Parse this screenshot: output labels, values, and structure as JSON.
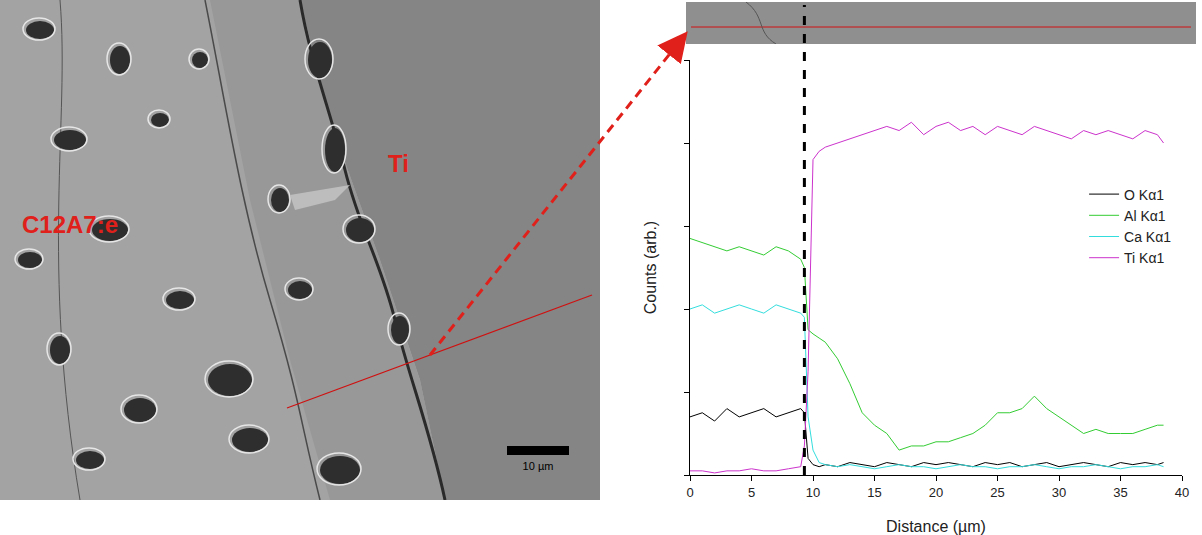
{
  "image": {
    "labels": [
      {
        "text": "C12A7:e",
        "color": "#e0201a"
      },
      {
        "text": "Ti",
        "color": "#e0201a"
      }
    ],
    "scale_bar": "10 µm"
  },
  "chart_data": {
    "type": "line",
    "x_label": "Distance (µm)",
    "y_label": "Counts (arb.)",
    "x": [
      0,
      1,
      2,
      3,
      4,
      5,
      6,
      7,
      8,
      9,
      9.3,
      9.6,
      10,
      10.5,
      11,
      12,
      13,
      14,
      15,
      16,
      17,
      18,
      19,
      20,
      21,
      22,
      23,
      24,
      25,
      26,
      27,
      28,
      29,
      30,
      31,
      32,
      33,
      34,
      35,
      36,
      37,
      38,
      38.5
    ],
    "series": [
      {
        "name": "O Kα1",
        "color": "#000000",
        "values": [
          14,
          15,
          13,
          16,
          14,
          15,
          16,
          14,
          15,
          16,
          15,
          4,
          2.5,
          2,
          2.5,
          2,
          3,
          2.5,
          2,
          3,
          2.5,
          2,
          3,
          2.5,
          3,
          2.5,
          2,
          3,
          2.5,
          3,
          2,
          2.5,
          3,
          2,
          2.5,
          3,
          2.5,
          2,
          3,
          2.5,
          3,
          2.5,
          3
        ]
      },
      {
        "name": "Al Kα1",
        "color": "#33cc33",
        "values": [
          57,
          56,
          55,
          54,
          55,
          54,
          53,
          55,
          54,
          52,
          50,
          35,
          34,
          33,
          32,
          28,
          22,
          15,
          12,
          10,
          6,
          7,
          7,
          8,
          8,
          9,
          10,
          12,
          15,
          15,
          16,
          19,
          16,
          14,
          12,
          10,
          11,
          10,
          10,
          10,
          11,
          12,
          12
        ]
      },
      {
        "name": "Ca Kα1",
        "color": "#33dddd",
        "values": [
          40,
          41,
          39,
          40,
          41,
          40,
          39,
          41,
          40,
          39,
          38,
          14,
          6,
          3,
          2.5,
          2,
          2.5,
          2,
          1.5,
          2,
          2.5,
          2,
          2,
          1.5,
          2,
          2.5,
          2,
          2,
          1.5,
          2,
          2,
          2.5,
          2,
          1.5,
          2,
          2,
          2.5,
          2,
          1.5,
          2,
          2,
          2.5,
          2
        ]
      },
      {
        "name": "Ti Kα1",
        "color": "#cc33cc",
        "values": [
          1,
          1,
          0.5,
          1,
          1,
          1.5,
          1,
          1,
          1.5,
          2,
          7,
          25,
          76,
          78,
          79,
          80,
          81,
          82,
          83,
          84,
          83,
          85,
          82,
          84,
          85,
          83,
          84,
          82,
          84,
          83,
          82,
          84,
          83,
          82,
          81,
          83,
          82,
          83,
          82,
          81,
          83,
          82,
          80
        ]
      }
    ],
    "xlim": [
      0,
      40
    ],
    "xticks": [
      0,
      5,
      10,
      15,
      20,
      25,
      30,
      35,
      40
    ],
    "ylim": [
      0,
      100
    ],
    "yticks": [
      0,
      20,
      40,
      60,
      80,
      100
    ],
    "tick_labels": "x",
    "grid": false,
    "legend": "right",
    "interface_x": 9.3
  }
}
